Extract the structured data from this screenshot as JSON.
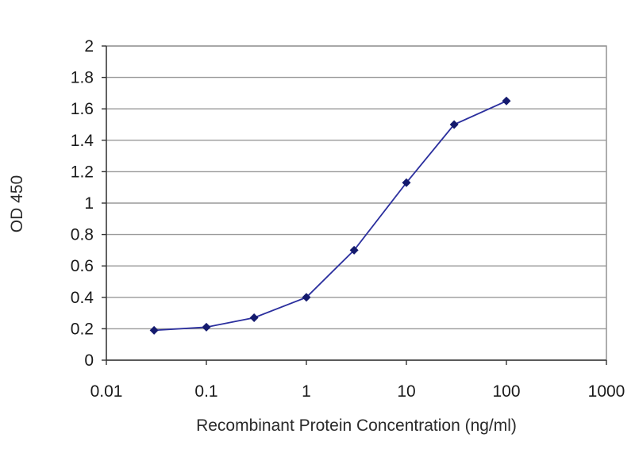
{
  "chart_data": {
    "type": "line",
    "xscale": "log",
    "x_ticks": [
      "0.01",
      "0.1",
      "1",
      "10",
      "100",
      "1000"
    ],
    "y_ticks": [
      "0",
      "0.2",
      "0.4",
      "0.6",
      "0.8",
      "1",
      "1.2",
      "1.4",
      "1.6",
      "1.8",
      "2"
    ],
    "xlim": [
      0.01,
      1000
    ],
    "ylim": [
      0,
      2
    ],
    "xlabel": "Recombinant Protein Concentration (ng/ml)",
    "ylabel": "OD 450",
    "grid": "horizontal",
    "series": [
      {
        "x": [
          0.03,
          0.1,
          0.3,
          1,
          3,
          10,
          30,
          100
        ],
        "y": [
          0.19,
          0.21,
          0.27,
          0.4,
          0.7,
          1.13,
          1.5,
          1.65
        ]
      }
    ],
    "colors": {
      "line": "#2b2f9e",
      "marker": "#141a6e"
    }
  }
}
